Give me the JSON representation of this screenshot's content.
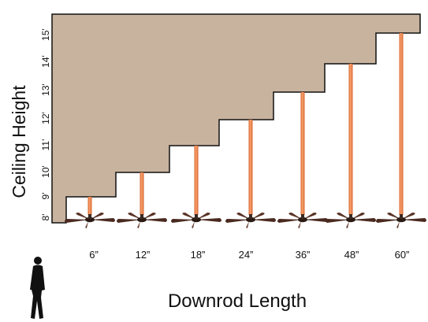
{
  "diagram": {
    "y_axis_label": "Ceiling Height",
    "x_axis_label": "Downrod Length",
    "height_ticks": [
      "8'",
      "9'",
      "10'",
      "11'",
      "12'",
      "13'",
      "14'",
      "15'"
    ],
    "downrods": [
      "6”",
      "12”",
      "18”",
      "24”",
      "36”",
      "48”",
      "60”"
    ],
    "colors": {
      "ceiling": "#C8B39E",
      "ceiling_edge": "#111111",
      "rod": "#E8763A",
      "rod_highlight": "#F6A36F",
      "fan_blades": "#4A2A20",
      "person": "#111111"
    },
    "icons": [
      "ceiling-fan-icon",
      "person-icon"
    ]
  }
}
